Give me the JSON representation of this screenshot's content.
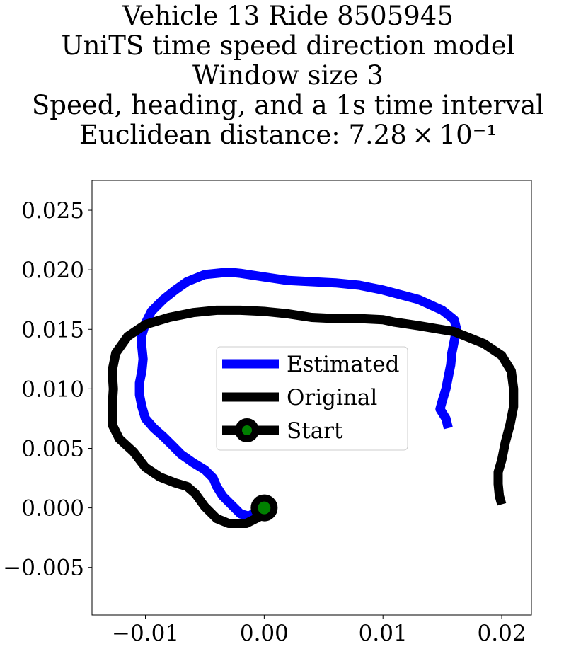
{
  "chart_data": {
    "type": "line",
    "title_lines": [
      "Vehicle 13 Ride 8505945",
      "UniTS time speed direction model",
      "Window size 3",
      "Speed, heading, and a 1s time interval",
      "Euclidean distance: 7.28 × 10⁻¹"
    ],
    "xlim": [
      -0.0145,
      0.0225
    ],
    "ylim": [
      -0.009,
      0.0275
    ],
    "x_ticks": [
      -0.01,
      0.0,
      0.01,
      0.02
    ],
    "x_tick_labels": [
      "−0.01",
      "0.00",
      "0.01",
      "0.02"
    ],
    "y_ticks": [
      -0.005,
      0.0,
      0.005,
      0.01,
      0.015,
      0.02,
      0.025
    ],
    "y_tick_labels": [
      "−0.005",
      "0.000",
      "0.005",
      "0.010",
      "0.015",
      "0.020",
      "0.025"
    ],
    "grid": false,
    "legend": "center",
    "series": [
      {
        "name": "Estimated",
        "color": "#0000ff",
        "points": [
          [
            0.0155,
            0.0067
          ],
          [
            0.0153,
            0.0075
          ],
          [
            0.0148,
            0.0083
          ],
          [
            0.015,
            0.009
          ],
          [
            0.0153,
            0.01
          ],
          [
            0.0155,
            0.011
          ],
          [
            0.0157,
            0.012
          ],
          [
            0.0158,
            0.013
          ],
          [
            0.016,
            0.014
          ],
          [
            0.0162,
            0.015
          ],
          [
            0.016,
            0.0158
          ],
          [
            0.015,
            0.0166
          ],
          [
            0.013,
            0.0175
          ],
          [
            0.01,
            0.0183
          ],
          [
            0.008,
            0.0187
          ],
          [
            0.006,
            0.0189
          ],
          [
            0.004,
            0.019
          ],
          [
            0.002,
            0.0191
          ],
          [
            0.0,
            0.0194
          ],
          [
            -0.002,
            0.0197
          ],
          [
            -0.003,
            0.0198
          ],
          [
            -0.005,
            0.0196
          ],
          [
            -0.0065,
            0.019
          ],
          [
            -0.0075,
            0.0183
          ],
          [
            -0.0085,
            0.0175
          ],
          [
            -0.0095,
            0.0165
          ],
          [
            -0.01,
            0.0155
          ],
          [
            -0.0103,
            0.0145
          ],
          [
            -0.0103,
            0.0135
          ],
          [
            -0.0102,
            0.0125
          ],
          [
            -0.0103,
            0.0115
          ],
          [
            -0.0105,
            0.0105
          ],
          [
            -0.0105,
            0.0095
          ],
          [
            -0.0103,
            0.0085
          ],
          [
            -0.01,
            0.0075
          ],
          [
            -0.0093,
            0.0067
          ],
          [
            -0.0085,
            0.006
          ],
          [
            -0.0078,
            0.0053
          ],
          [
            -0.007,
            0.0045
          ],
          [
            -0.006,
            0.0038
          ],
          [
            -0.005,
            0.0032
          ],
          [
            -0.0043,
            0.0025
          ],
          [
            -0.004,
            0.0018
          ],
          [
            -0.0035,
            0.001
          ],
          [
            -0.0028,
            0.0003
          ],
          [
            -0.002,
            -0.0005
          ],
          [
            -0.0013,
            -0.0007
          ],
          [
            0.0,
            0.0
          ]
        ]
      },
      {
        "name": "Original",
        "color": "#000000",
        "points": [
          [
            0.02,
            0.0003
          ],
          [
            0.0198,
            0.001
          ],
          [
            0.0197,
            0.002
          ],
          [
            0.0197,
            0.003
          ],
          [
            0.02,
            0.004
          ],
          [
            0.0203,
            0.0055
          ],
          [
            0.0207,
            0.007
          ],
          [
            0.021,
            0.0085
          ],
          [
            0.021,
            0.01
          ],
          [
            0.0208,
            0.0115
          ],
          [
            0.02,
            0.0128
          ],
          [
            0.0185,
            0.0138
          ],
          [
            0.016,
            0.0148
          ],
          [
            0.013,
            0.0153
          ],
          [
            0.011,
            0.0156
          ],
          [
            0.01,
            0.0158
          ],
          [
            0.008,
            0.0159
          ],
          [
            0.006,
            0.0159
          ],
          [
            0.004,
            0.016
          ],
          [
            0.002,
            0.0163
          ],
          [
            0.0,
            0.0165
          ],
          [
            -0.002,
            0.0166
          ],
          [
            -0.004,
            0.0166
          ],
          [
            -0.006,
            0.0164
          ],
          [
            -0.008,
            0.016
          ],
          [
            -0.01,
            0.0154
          ],
          [
            -0.0115,
            0.0144
          ],
          [
            -0.0125,
            0.013
          ],
          [
            -0.0128,
            0.0115
          ],
          [
            -0.0127,
            0.01
          ],
          [
            -0.0128,
            0.0085
          ],
          [
            -0.0128,
            0.007
          ],
          [
            -0.0122,
            0.0058
          ],
          [
            -0.011,
            0.0047
          ],
          [
            -0.01,
            0.0034
          ],
          [
            -0.0088,
            0.0026
          ],
          [
            -0.0075,
            0.0021
          ],
          [
            -0.0065,
            0.0018
          ],
          [
            -0.0058,
            0.0012
          ],
          [
            -0.005,
            0.0001
          ],
          [
            -0.004,
            -0.0009
          ],
          [
            -0.003,
            -0.0013
          ],
          [
            -0.0015,
            -0.0013
          ],
          [
            -0.0005,
            -0.0008
          ],
          [
            0.0,
            0.0
          ]
        ]
      },
      {
        "name": "Start",
        "color": "#000000",
        "marker_color": "#008000",
        "points": [
          [
            0.0,
            0.0
          ]
        ]
      }
    ]
  }
}
